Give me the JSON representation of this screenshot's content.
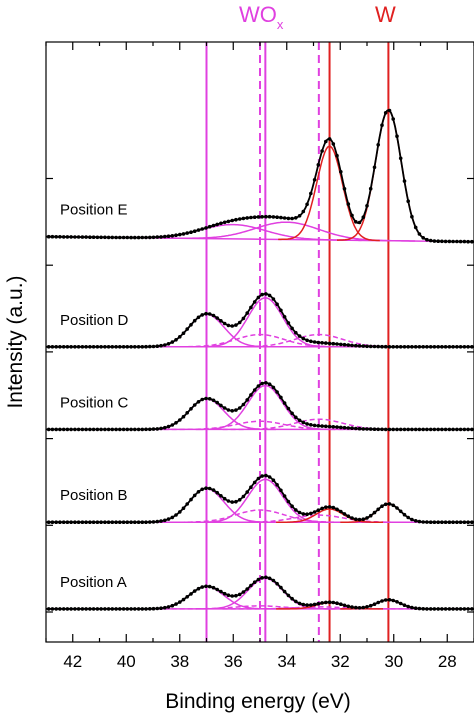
{
  "chart_data": {
    "type": "line",
    "title": "",
    "xlabel": "Binding energy (eV)",
    "ylabel": "Intensity (a.u.)",
    "xlim": [
      43,
      27
    ],
    "x_reversed": true,
    "xticks": [
      42,
      40,
      38,
      36,
      34,
      32,
      30,
      28
    ],
    "grid": false,
    "colors": {
      "wox": "#e040e0",
      "w": "#e02020",
      "data": "#000000"
    },
    "top_labels": {
      "wox_main": "WO",
      "wox_sub": "x",
      "w": "W"
    },
    "reference_lines": [
      {
        "x": 37.0,
        "group": "wox",
        "style": "solid"
      },
      {
        "x": 35.0,
        "group": "wox",
        "style": "dashed"
      },
      {
        "x": 34.8,
        "group": "wox",
        "style": "solid"
      },
      {
        "x": 32.8,
        "group": "wox",
        "style": "dashed"
      },
      {
        "x": 32.4,
        "group": "w",
        "style": "solid"
      },
      {
        "x": 30.2,
        "group": "w",
        "style": "solid"
      }
    ],
    "series": [
      {
        "name": "Position A",
        "offset": 0,
        "baseline": [
          0.03,
          0.0
        ],
        "peaks": [
          {
            "center": 37.0,
            "height": 0.22,
            "width": 0.65,
            "color": "wox",
            "style": "solid"
          },
          {
            "center": 34.8,
            "height": 0.3,
            "width": 0.65,
            "color": "wox",
            "style": "solid"
          },
          {
            "center": 35.0,
            "height": 0.03,
            "width": 0.9,
            "color": "wox",
            "style": "dashed"
          },
          {
            "center": 32.8,
            "height": 0.02,
            "width": 0.9,
            "color": "wox",
            "style": "dashed"
          },
          {
            "center": 32.4,
            "height": 0.06,
            "width": 0.5,
            "color": "w",
            "style": "solid"
          },
          {
            "center": 30.2,
            "height": 0.09,
            "width": 0.45,
            "color": "w",
            "style": "solid"
          }
        ]
      },
      {
        "name": "Position B",
        "offset": 0.85,
        "baseline": [
          0.03,
          0.0
        ],
        "peaks": [
          {
            "center": 37.0,
            "height": 0.33,
            "width": 0.65,
            "color": "wox",
            "style": "solid"
          },
          {
            "center": 34.8,
            "height": 0.42,
            "width": 0.65,
            "color": "wox",
            "style": "solid"
          },
          {
            "center": 35.0,
            "height": 0.12,
            "width": 0.9,
            "color": "wox",
            "style": "dashed"
          },
          {
            "center": 32.8,
            "height": 0.07,
            "width": 0.9,
            "color": "wox",
            "style": "dashed"
          },
          {
            "center": 32.4,
            "height": 0.13,
            "width": 0.5,
            "color": "w",
            "style": "solid"
          },
          {
            "center": 30.2,
            "height": 0.18,
            "width": 0.45,
            "color": "w",
            "style": "solid"
          }
        ]
      },
      {
        "name": "Position C",
        "offset": 1.76,
        "baseline": [
          0.03,
          0.0
        ],
        "peaks": [
          {
            "center": 37.0,
            "height": 0.3,
            "width": 0.65,
            "color": "wox",
            "style": "solid"
          },
          {
            "center": 34.8,
            "height": 0.43,
            "width": 0.65,
            "color": "wox",
            "style": "solid"
          },
          {
            "center": 35.0,
            "height": 0.08,
            "width": 0.9,
            "color": "wox",
            "style": "dashed"
          },
          {
            "center": 32.8,
            "height": 0.1,
            "width": 0.9,
            "color": "wox",
            "style": "dashed"
          }
        ]
      },
      {
        "name": "Position D",
        "offset": 2.56,
        "baseline": [
          0.04,
          0.0
        ],
        "peaks": [
          {
            "center": 37.0,
            "height": 0.32,
            "width": 0.65,
            "color": "wox",
            "style": "solid"
          },
          {
            "center": 34.8,
            "height": 0.48,
            "width": 0.65,
            "color": "wox",
            "style": "solid"
          },
          {
            "center": 35.0,
            "height": 0.12,
            "width": 0.9,
            "color": "wox",
            "style": "dashed"
          },
          {
            "center": 32.8,
            "height": 0.12,
            "width": 0.9,
            "color": "wox",
            "style": "dashed"
          }
        ]
      },
      {
        "name": "Position E",
        "offset": 3.58,
        "baseline": [
          0.1,
          -0.05
        ],
        "peaks": [
          {
            "center": 36.0,
            "height": 0.14,
            "width": 1.2,
            "color": "wox",
            "style": "solid"
          },
          {
            "center": 34.0,
            "height": 0.17,
            "width": 1.2,
            "color": "wox",
            "style": "solid"
          },
          {
            "center": 32.4,
            "height": 0.92,
            "width": 0.48,
            "color": "w",
            "style": "solid"
          },
          {
            "center": 30.2,
            "height": 1.28,
            "width": 0.48,
            "color": "w",
            "style": "solid"
          }
        ]
      }
    ]
  }
}
